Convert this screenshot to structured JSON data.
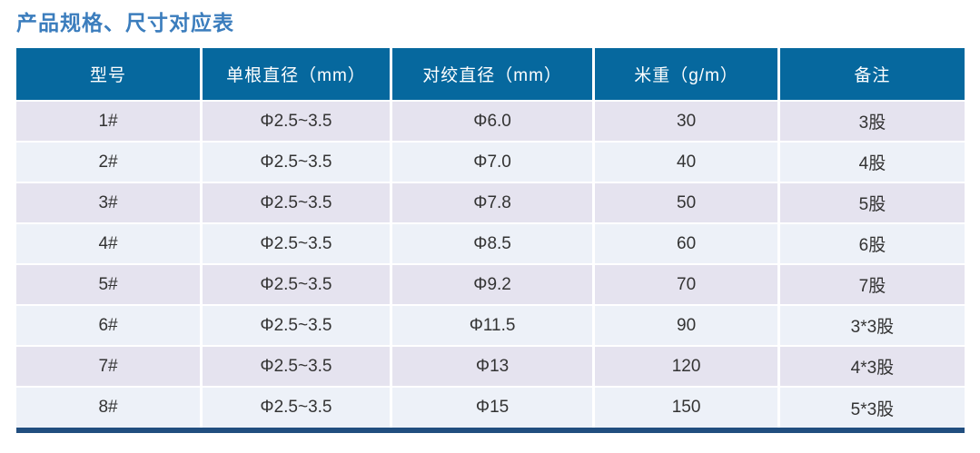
{
  "page_title": "产品规格、尺寸对应表",
  "colors": {
    "title": "#3b7dbd",
    "header_bg": "#06689e",
    "header_text": "#ffffff",
    "row_odd_bg": "#e5e3ef",
    "row_even_bg": "#edf1f8",
    "body_text": "#333333",
    "bottom_bar": "#214e7f"
  },
  "table": {
    "columns": [
      "型号",
      "单根直径（mm）",
      "对绞直径（mm）",
      "米重（g/m）",
      "备注"
    ],
    "rows": [
      [
        "1#",
        "Φ2.5~3.5",
        "Φ6.0",
        "30",
        "3股"
      ],
      [
        "2#",
        "Φ2.5~3.5",
        "Φ7.0",
        "40",
        "4股"
      ],
      [
        "3#",
        "Φ2.5~3.5",
        "Φ7.8",
        "50",
        "5股"
      ],
      [
        "4#",
        "Φ2.5~3.5",
        "Φ8.5",
        "60",
        "6股"
      ],
      [
        "5#",
        "Φ2.5~3.5",
        "Φ9.2",
        "70",
        "7股"
      ],
      [
        "6#",
        "Φ2.5~3.5",
        "Φ11.5",
        "90",
        "3*3股"
      ],
      [
        "7#",
        "Φ2.5~3.5",
        "Φ13",
        "120",
        "4*3股"
      ],
      [
        "8#",
        "Φ2.5~3.5",
        "Φ15",
        "150",
        "5*3股"
      ]
    ]
  }
}
